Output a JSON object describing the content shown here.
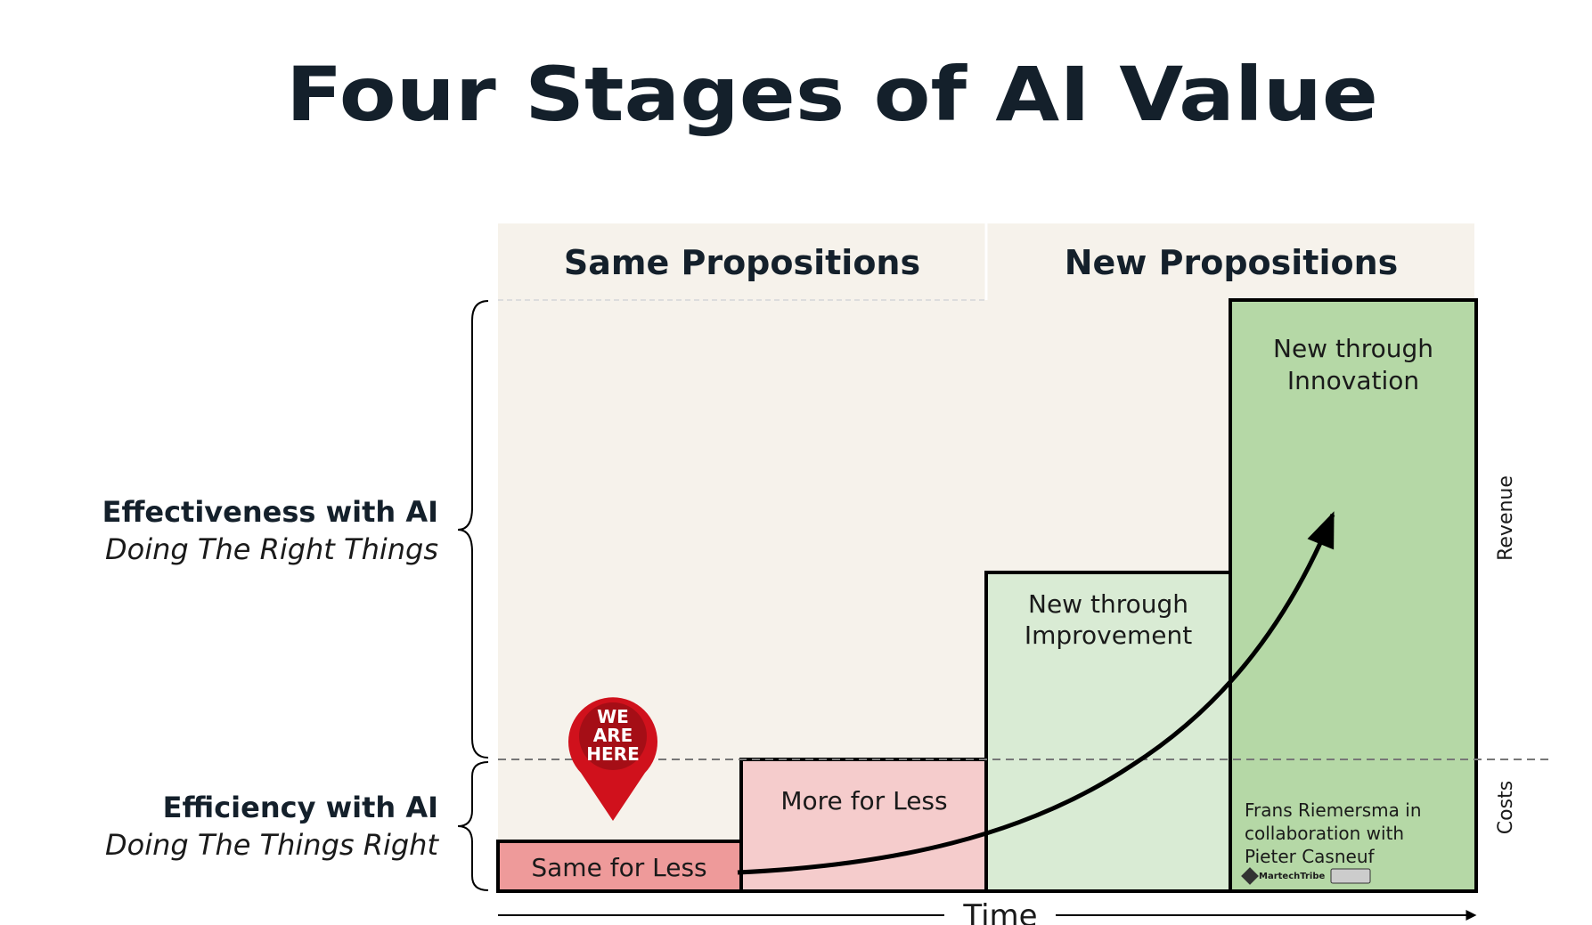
{
  "title": "Four Stages of AI Value",
  "columns": [
    "Same Propositions",
    "New Propositions"
  ],
  "stages": [
    {
      "lines": [
        "Same for Less"
      ]
    },
    {
      "lines": [
        "More for Less"
      ]
    },
    {
      "lines": [
        "New through",
        "Improvement"
      ]
    },
    {
      "lines": [
        "New through",
        "Innovation"
      ]
    }
  ],
  "left_labels": [
    {
      "title": "Effectiveness with AI",
      "subtitle": "Doing The Right Things"
    },
    {
      "title": "Efficiency with AI",
      "subtitle": "Doing The Things Right"
    }
  ],
  "right_labels": [
    "Revenue",
    "Costs"
  ],
  "axis_label": "Time",
  "pin": [
    "WE",
    "ARE",
    "HERE"
  ],
  "credit": [
    "Frans Riemersma in",
    "collaboration with",
    "Pieter Casneuf"
  ],
  "logo": "MartechTribe"
}
